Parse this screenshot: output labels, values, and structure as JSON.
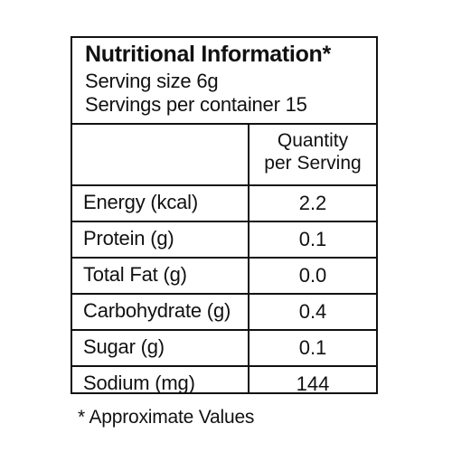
{
  "label": {
    "title": "Nutritional Information*",
    "serving_size": "Serving size 6g",
    "servings_per_container": "Servings per container 15",
    "column_header_line1": "Quantity",
    "column_header_line2": "per Serving",
    "rows": [
      {
        "nutrient": "Energy (kcal)",
        "value": "2.2"
      },
      {
        "nutrient": "Protein (g)",
        "value": "0.1"
      },
      {
        "nutrient": "Total Fat (g)",
        "value": "0.0"
      },
      {
        "nutrient": "Carbohydrate (g)",
        "value": "0.4"
      },
      {
        "nutrient": "Sugar (g)",
        "value": "0.1"
      },
      {
        "nutrient": "Sodium (mg)",
        "value": "144"
      }
    ],
    "footnote": "* Approximate Values"
  }
}
